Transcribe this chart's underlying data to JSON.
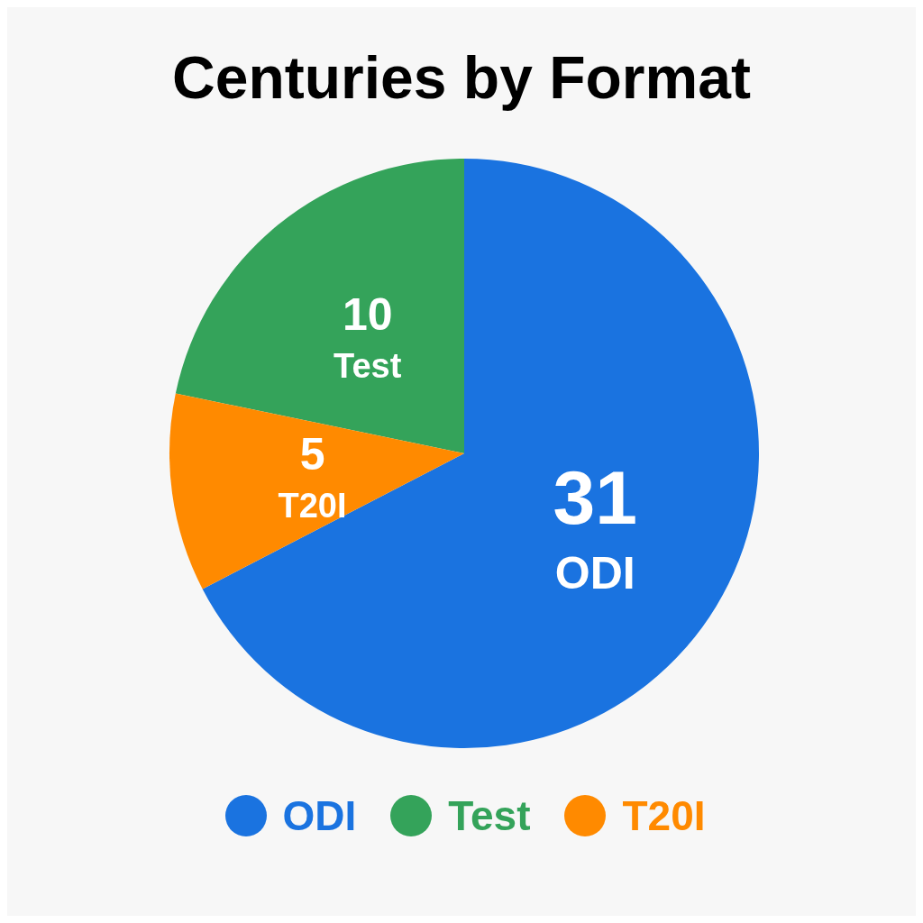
{
  "chart_data": {
    "type": "pie",
    "title": "Centuries by Format",
    "categories": [
      "ODI",
      "Test",
      "T20I"
    ],
    "values": [
      31,
      10,
      5
    ],
    "colors": [
      "#1a73e0",
      "#34a35a",
      "#ff8a00"
    ],
    "data_labels": true,
    "legend": "bottom"
  }
}
